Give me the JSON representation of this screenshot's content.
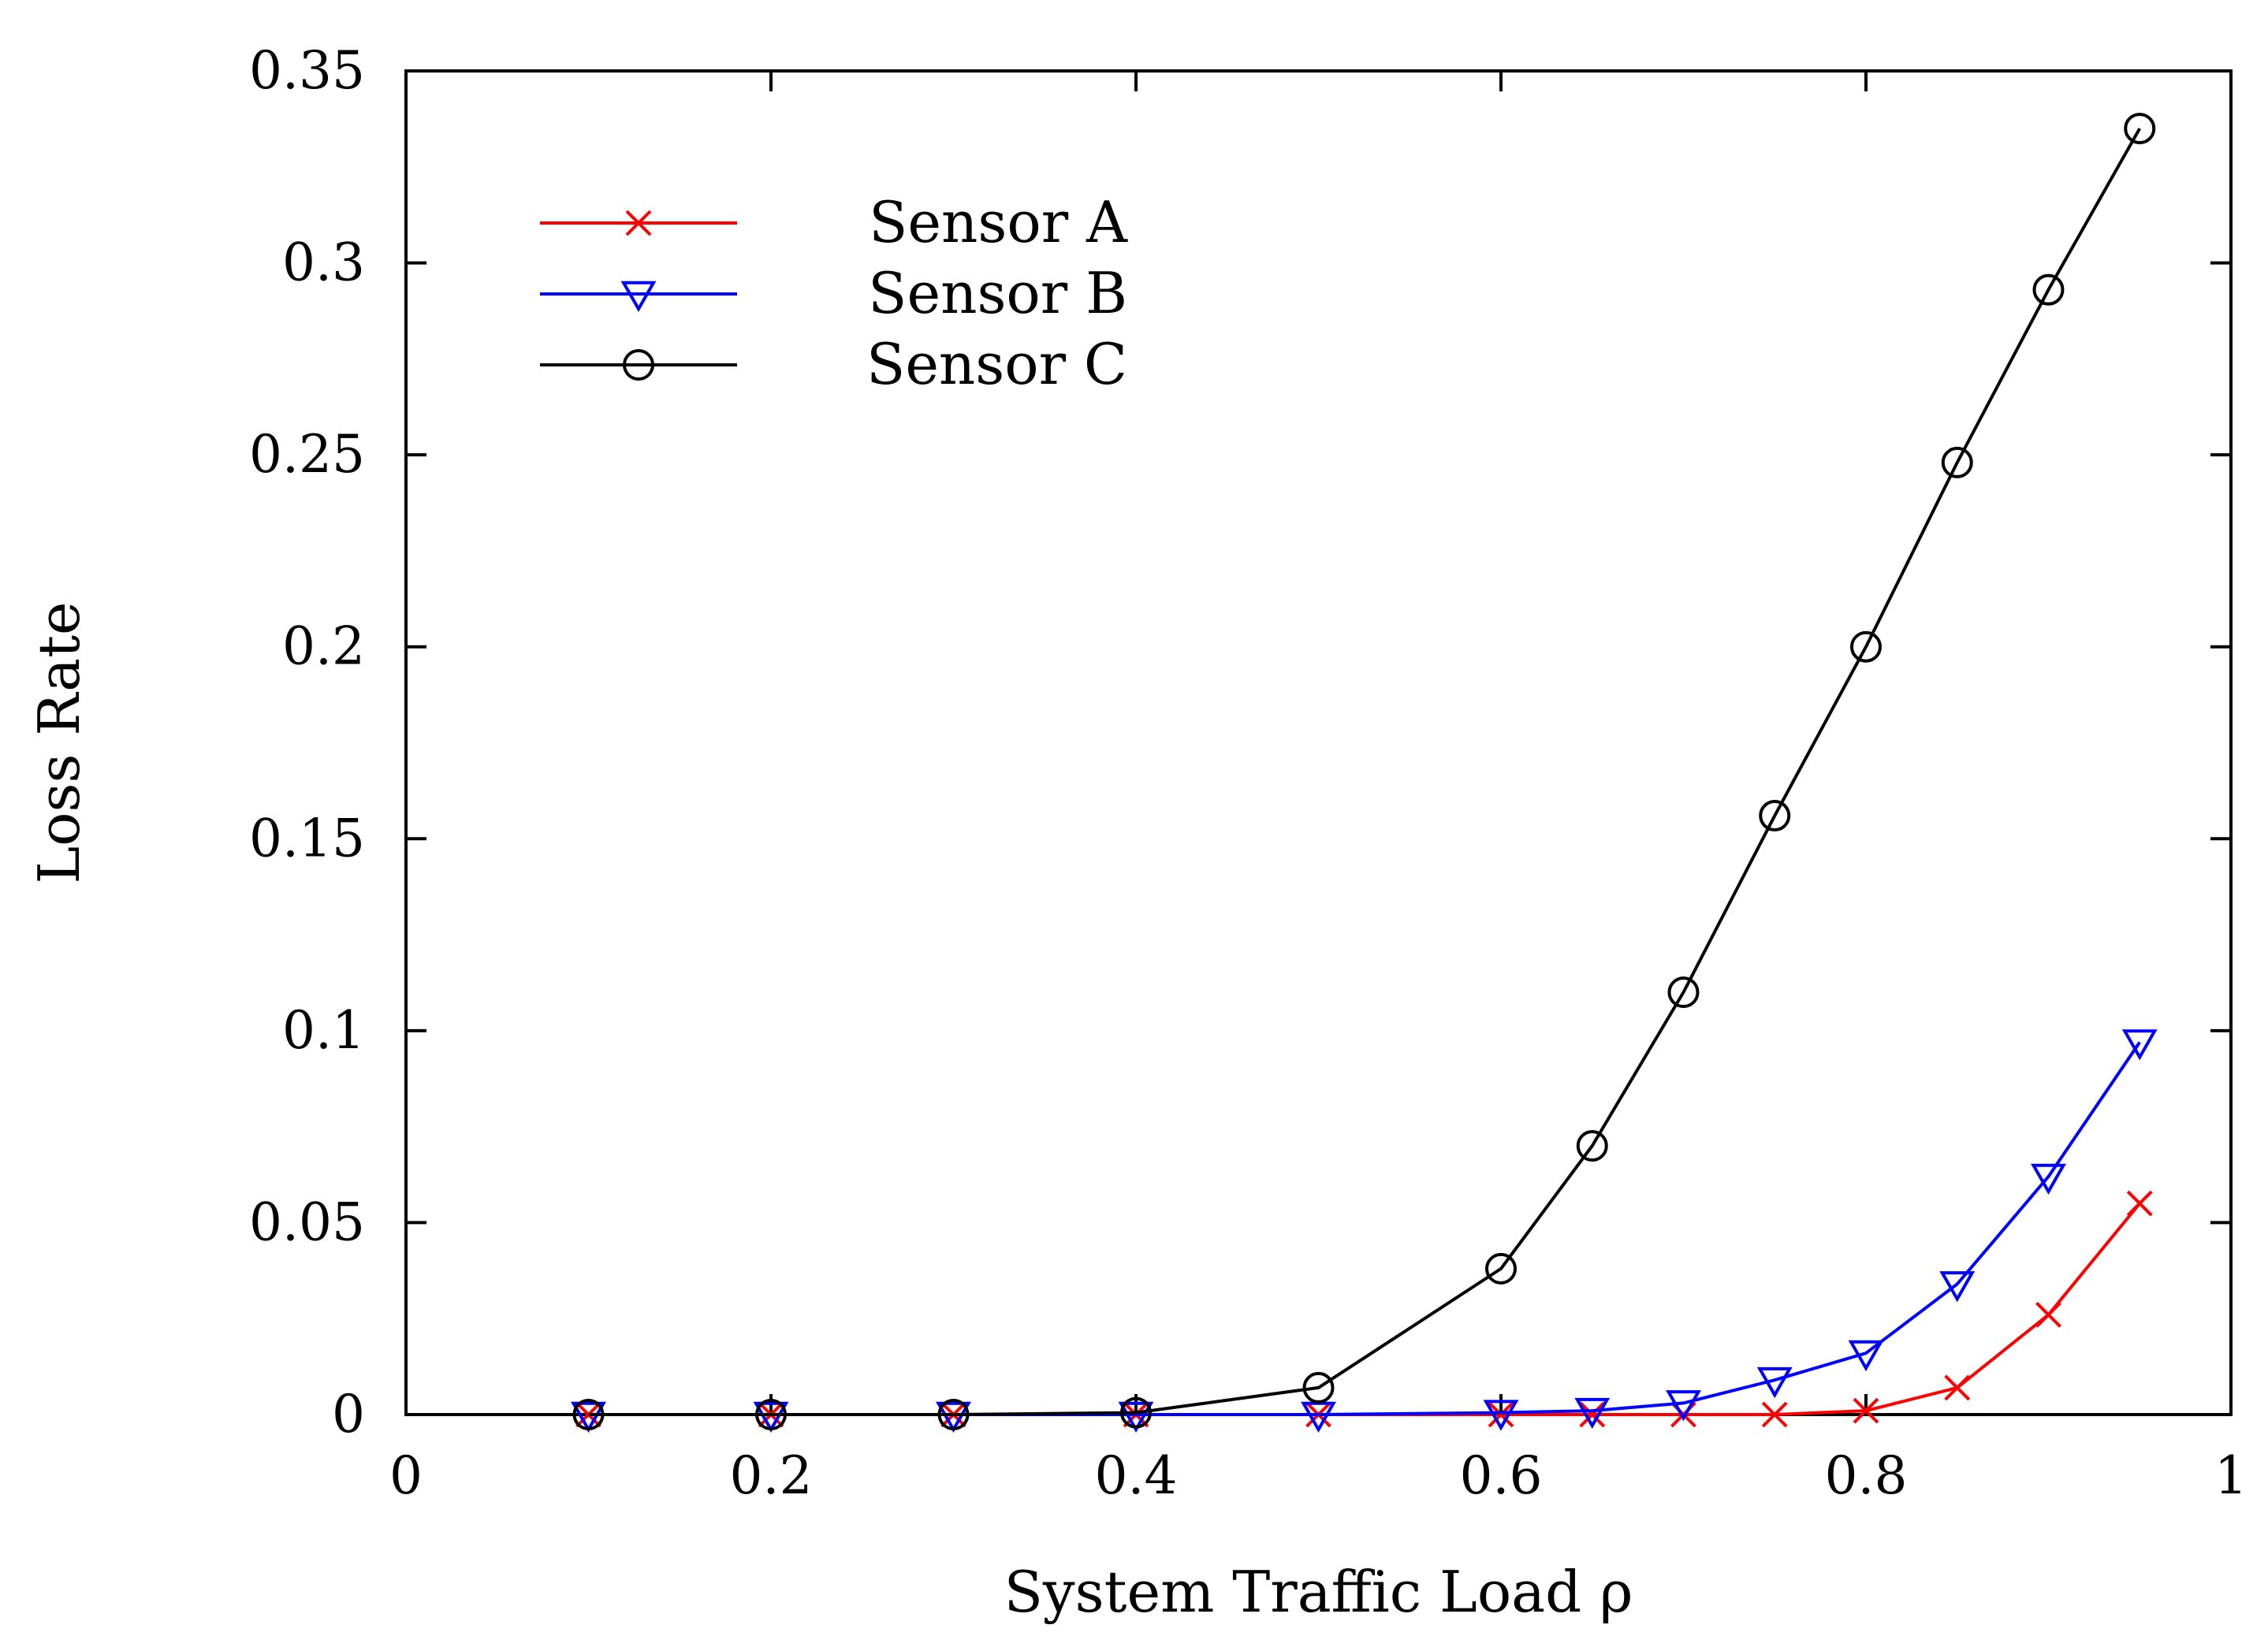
{
  "chart_data": {
    "type": "line",
    "title": "",
    "xlabel": "System Traffic Load ρ",
    "ylabel": "Loss Rate",
    "xlim": [
      0,
      1
    ],
    "ylim": [
      0,
      0.35
    ],
    "x_ticks": [
      0,
      0.2,
      0.4,
      0.6,
      0.8,
      1
    ],
    "x_tick_labels": [
      "0",
      "0.2",
      "0.4",
      "0.6",
      "0.8",
      "1"
    ],
    "y_ticks": [
      0,
      0.05,
      0.1,
      0.15,
      0.2,
      0.25,
      0.3,
      0.35
    ],
    "y_tick_labels": [
      "0",
      "0.05",
      "0.1",
      "0.15",
      "0.2",
      "0.25",
      "0.3",
      "0.35"
    ],
    "grid": false,
    "legend_position": "top-left",
    "x": [
      0.1,
      0.2,
      0.3,
      0.4,
      0.5,
      0.6,
      0.65,
      0.7,
      0.75,
      0.8,
      0.85,
      0.9,
      0.95
    ],
    "series": [
      {
        "name": "Sensor A",
        "color": "#ff0000",
        "marker": "cross",
        "values": [
          0,
          0,
          0,
          0,
          0,
          0,
          0,
          0,
          0,
          0.001,
          0.007,
          0.026,
          0.055
        ]
      },
      {
        "name": "Sensor B",
        "color": "#0000ff",
        "marker": "triangle-down",
        "values": [
          0,
          0,
          0,
          0,
          0,
          0.0005,
          0.001,
          0.003,
          0.009,
          0.016,
          0.034,
          0.062,
          0.097
        ]
      },
      {
        "name": "Sensor C",
        "color": "#000000",
        "marker": "circle",
        "values": [
          0,
          0,
          0,
          0.0005,
          0.007,
          0.038,
          0.07,
          0.11,
          0.156,
          0.2,
          0.248,
          0.293,
          0.335
        ]
      }
    ]
  }
}
